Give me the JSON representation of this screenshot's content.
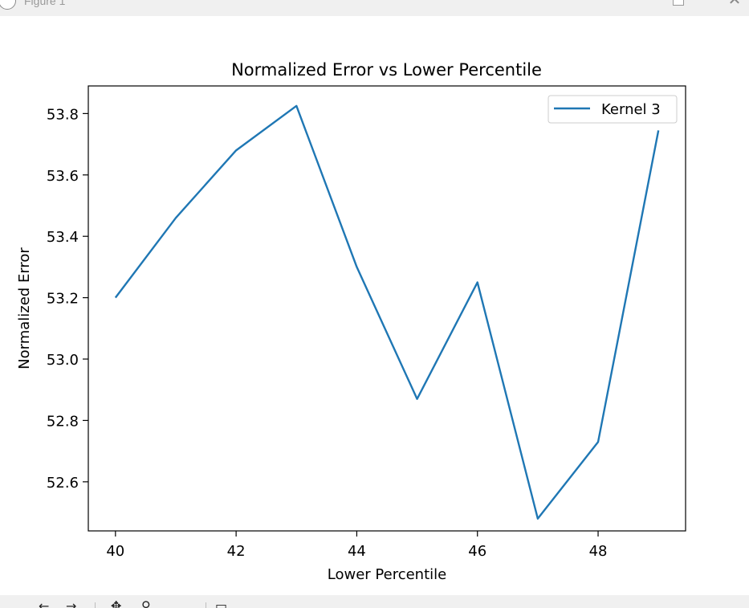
{
  "window": {
    "title": "Figure 1"
  },
  "chart_data": {
    "type": "line",
    "title": "Normalized Error vs Lower Percentile",
    "xlabel": "Lower Percentile",
    "ylabel": "Normalized Error",
    "xlim": [
      39.55,
      49.45
    ],
    "ylim": [
      52.44,
      53.89
    ],
    "xticks": [
      40,
      42,
      44,
      46,
      48
    ],
    "yticks": [
      52.6,
      52.8,
      53.0,
      53.2,
      53.4,
      53.6,
      53.8
    ],
    "grid": false,
    "legend": "top-right",
    "series": [
      {
        "name": "Kernel 3",
        "color": "#1f77b4",
        "x": [
          40,
          41,
          42,
          43,
          44,
          45,
          46,
          47,
          48,
          49
        ],
        "y": [
          53.2,
          53.46,
          53.68,
          53.825,
          53.3,
          52.87,
          53.25,
          52.48,
          52.73,
          53.745
        ]
      }
    ]
  }
}
